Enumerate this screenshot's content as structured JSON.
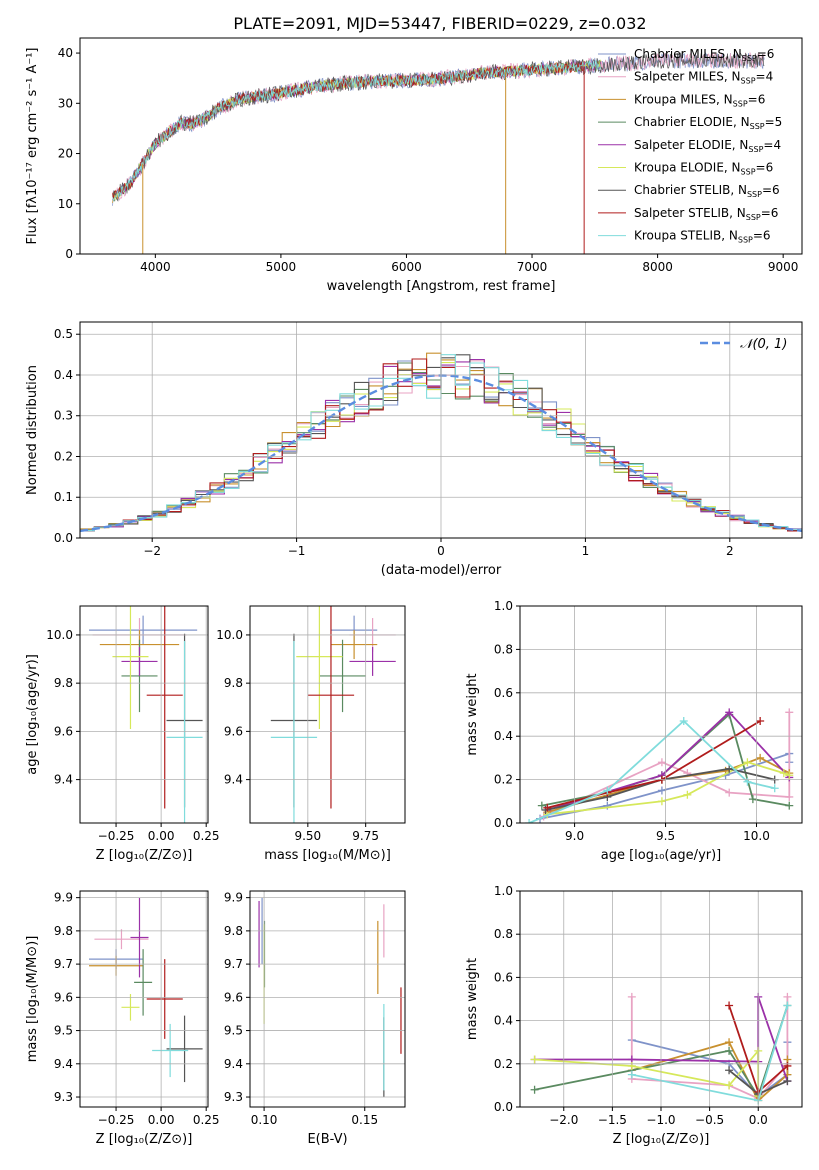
{
  "figure": {
    "title": "PLATE=2091, MJD=53447, FIBERID=0229, z=0.032"
  },
  "models": [
    {
      "label": "Chabrier MILES, N",
      "sub": "SSP",
      "suffix": "=6",
      "color": "#7f93c9"
    },
    {
      "label": "Salpeter MILES, N",
      "sub": "SSP",
      "suffix": "=4",
      "color": "#e8a3c3"
    },
    {
      "label": "Kroupa MILES, N",
      "sub": "SSP",
      "suffix": "=6",
      "color": "#c8902e"
    },
    {
      "label": "Chabrier ELODIE, N",
      "sub": "SSP",
      "suffix": "=5",
      "color": "#5a8a60"
    },
    {
      "label": "Salpeter ELODIE, N",
      "sub": "SSP",
      "suffix": "=4",
      "color": "#9b31a8"
    },
    {
      "label": "Kroupa ELODIE, N",
      "sub": "SSP",
      "suffix": "=6",
      "color": "#d6e85a"
    },
    {
      "label": "Chabrier STELIB, N",
      "sub": "SSP",
      "suffix": "=6",
      "color": "#555555"
    },
    {
      "label": "Salpeter STELIB, N",
      "sub": "SSP",
      "suffix": "=6",
      "color": "#b01c1c"
    },
    {
      "label": "Kroupa STELIB, N",
      "sub": "SSP",
      "suffix": "=6",
      "color": "#80dcdc"
    }
  ],
  "chart_data": [
    {
      "id": "spectrum",
      "type": "line",
      "xlabel": "wavelength [Angstrom, rest frame]",
      "ylabel": "Flux [fλ10⁻¹⁷ erg cm⁻² s⁻¹ A⁻¹]",
      "xlim": [
        3400,
        9150
      ],
      "ylim": [
        0,
        43
      ],
      "xticks": [
        4000,
        5000,
        6000,
        7000,
        8000,
        9000
      ],
      "yticks": [
        0,
        10,
        20,
        30,
        40
      ],
      "continuum": [
        [
          3650,
          11
        ],
        [
          3800,
          14
        ],
        [
          3900,
          18
        ],
        [
          4000,
          22
        ],
        [
          4100,
          24
        ],
        [
          4200,
          26
        ],
        [
          4300,
          26
        ],
        [
          4400,
          27
        ],
        [
          4500,
          29
        ],
        [
          4700,
          31
        ],
        [
          5000,
          32
        ],
        [
          5200,
          33
        ],
        [
          5500,
          34
        ],
        [
          5800,
          34.5
        ],
        [
          6000,
          34.5
        ],
        [
          6300,
          35
        ],
        [
          6600,
          36
        ],
        [
          6900,
          36.5
        ],
        [
          7200,
          37
        ],
        [
          7500,
          37.5
        ],
        [
          7800,
          38
        ],
        [
          8100,
          38.5
        ],
        [
          8400,
          38.5
        ],
        [
          8800,
          38.5
        ]
      ],
      "series": [
        {
          "model": 0,
          "x_end": 8850
        },
        {
          "model": 1,
          "x_end": 8850
        },
        {
          "model": 2,
          "x_end": 7550
        },
        {
          "model": 3,
          "x_end": 7550
        },
        {
          "model": 4,
          "x_end": 7550
        },
        {
          "model": 5,
          "x_end": 7550
        },
        {
          "model": 6,
          "x_end": 8850
        },
        {
          "model": 7,
          "x_end": 7420
        },
        {
          "model": 8,
          "x_end": 7550
        }
      ],
      "legend_loc": "right"
    },
    {
      "id": "residuals",
      "type": "histogram",
      "xlabel": "(data-model)/error",
      "ylabel": "Normed distribution",
      "xlim": [
        -2.5,
        2.5
      ],
      "ylim": [
        0,
        0.53
      ],
      "xticks": [
        -2,
        -1,
        0,
        1,
        2
      ],
      "yticks": [
        0.0,
        0.1,
        0.2,
        0.3,
        0.4,
        0.5
      ],
      "bin_width": 0.1,
      "gaussian_label": "𝒩(0, 1)",
      "gaussian_color": "#5b8de0"
    },
    {
      "id": "age_vs_Z",
      "type": "errorbar",
      "xlabel": "Z [log₁₀(Z/Z⊙)]",
      "ylabel": "age  [log₁₀(age/yr)]",
      "xlim": [
        -0.45,
        0.26
      ],
      "ylim": [
        9.22,
        10.12
      ],
      "xticks": [
        -0.25,
        0.0,
        0.25
      ],
      "xticklabels": [
        "−0.25",
        "0.00",
        "0.25"
      ],
      "yticks": [
        9.4,
        9.6,
        9.8,
        10.0
      ],
      "points": [
        {
          "model": 0,
          "x": -0.1,
          "xerr": 0.3,
          "y": 10.02,
          "yerr": 0.06
        },
        {
          "model": 1,
          "x": -0.12,
          "xerr": 0.26,
          "y": 10.0,
          "yerr": 0.07
        },
        {
          "model": 2,
          "x": -0.12,
          "xerr": 0.22,
          "y": 9.96,
          "yerr": 0.06
        },
        {
          "model": 3,
          "x": -0.12,
          "xerr": 0.1,
          "y": 9.83,
          "yerr": 0.15
        },
        {
          "model": 4,
          "x": -0.12,
          "xerr": 0.1,
          "y": 9.89,
          "yerr": 0.06
        },
        {
          "model": 5,
          "x": -0.17,
          "xerr": 0.1,
          "y": 9.91,
          "yerr": 0.3
        },
        {
          "model": 6,
          "x": 0.13,
          "xerr": 0.1,
          "y": 9.645,
          "yerr": 0.36
        },
        {
          "model": 7,
          "x": 0.02,
          "xerr": 0.1,
          "y": 9.75,
          "yerr": 0.47
        },
        {
          "model": 8,
          "x": 0.13,
          "xerr": 0.1,
          "y": 9.575,
          "yerr": 0.4
        }
      ]
    },
    {
      "id": "age_vs_mass",
      "type": "errorbar",
      "xlabel": "mass [log₁₀(M/M⊙)]",
      "ylabel": "",
      "xlim": [
        9.25,
        9.92
      ],
      "ylim": [
        9.22,
        10.12
      ],
      "xticks": [
        9.5,
        9.75
      ],
      "xticklabels": [
        "9.50",
        "9.75"
      ],
      "yticks": [
        9.4,
        9.6,
        9.8,
        10.0
      ],
      "points": [
        {
          "model": 0,
          "x": 9.7,
          "xerr": 0.1,
          "y": 10.02,
          "yerr": 0.06
        },
        {
          "model": 1,
          "x": 9.78,
          "xerr": 0.1,
          "y": 10.0,
          "yerr": 0.07
        },
        {
          "model": 2,
          "x": 9.7,
          "xerr": 0.1,
          "y": 9.96,
          "yerr": 0.06
        },
        {
          "model": 3,
          "x": 9.65,
          "xerr": 0.1,
          "y": 9.83,
          "yerr": 0.15
        },
        {
          "model": 4,
          "x": 9.78,
          "xerr": 0.1,
          "y": 9.89,
          "yerr": 0.06
        },
        {
          "model": 5,
          "x": 9.55,
          "xerr": 0.1,
          "y": 9.91,
          "yerr": 0.3
        },
        {
          "model": 6,
          "x": 9.44,
          "xerr": 0.1,
          "y": 9.645,
          "yerr": 0.36
        },
        {
          "model": 7,
          "x": 9.6,
          "xerr": 0.1,
          "y": 9.75,
          "yerr": 0.47
        },
        {
          "model": 8,
          "x": 9.44,
          "xerr": 0.1,
          "y": 9.575,
          "yerr": 0.4
        }
      ]
    },
    {
      "id": "weight_vs_age",
      "type": "line_marker",
      "xlabel": "age  [log₁₀(age/yr)]",
      "ylabel": "mass weight",
      "xlim": [
        8.7,
        10.25
      ],
      "ylim": [
        0,
        1.0
      ],
      "xticks": [
        9.0,
        9.5,
        10.0
      ],
      "xticklabels": [
        "9.0",
        "9.5",
        "10.0"
      ],
      "yticks": [
        0.0,
        0.2,
        0.4,
        0.6,
        0.8,
        1.0
      ],
      "series": [
        {
          "model": 0,
          "x": [
            8.81,
            9.18,
            9.48,
            9.83,
            10.18,
            10.18
          ],
          "y": [
            0.02,
            0.08,
            0.15,
            0.22,
            0.32,
            0.28
          ]
        },
        {
          "model": 1,
          "x": [
            8.83,
            9.48,
            9.62,
            9.85,
            10.18,
            10.18
          ],
          "y": [
            0.03,
            0.28,
            0.23,
            0.14,
            0.12,
            0.51
          ]
        },
        {
          "model": 2,
          "x": [
            8.85,
            9.48,
            9.83,
            10.02,
            10.18
          ],
          "y": [
            0.05,
            0.2,
            0.24,
            0.3,
            0.23
          ]
        },
        {
          "model": 3,
          "x": [
            8.82,
            9.18,
            9.48,
            9.85,
            9.98,
            10.18
          ],
          "y": [
            0.08,
            0.14,
            0.22,
            0.5,
            0.11,
            0.08
          ]
        },
        {
          "model": 4,
          "x": [
            8.85,
            9.48,
            9.85,
            10.18
          ],
          "y": [
            0.06,
            0.22,
            0.51,
            0.21
          ]
        },
        {
          "model": 5,
          "x": [
            8.85,
            9.48,
            9.62,
            9.95,
            10.15,
            10.18
          ],
          "y": [
            0.04,
            0.1,
            0.13,
            0.28,
            0.23,
            0.22
          ]
        },
        {
          "model": 6,
          "x": [
            8.84,
            9.18,
            9.48,
            9.85,
            10.1
          ],
          "y": [
            0.06,
            0.12,
            0.2,
            0.25,
            0.2
          ]
        },
        {
          "model": 7,
          "x": [
            8.85,
            9.18,
            9.48,
            10.02
          ],
          "y": [
            0.07,
            0.14,
            0.2,
            0.47
          ]
        },
        {
          "model": 8,
          "x": [
            8.75,
            9.18,
            9.6,
            9.95,
            10.1
          ],
          "y": [
            0.0,
            0.15,
            0.47,
            0.19,
            0.16
          ]
        }
      ]
    },
    {
      "id": "mass_vs_Z",
      "type": "errorbar",
      "xlabel": "Z [log₁₀(Z/Z⊙)]",
      "ylabel": "mass [log₁₀(M/M⊙)]",
      "xlim": [
        -0.45,
        0.26
      ],
      "ylim": [
        9.27,
        9.92
      ],
      "xticks": [
        -0.25,
        0.0,
        0.25
      ],
      "xticklabels": [
        "−0.25",
        "0.00",
        "0.25"
      ],
      "yticks": [
        9.3,
        9.4,
        9.5,
        9.6,
        9.7,
        9.8,
        9.9
      ],
      "points": [
        {
          "model": 0,
          "x": -0.25,
          "xerr": 0.15,
          "y": 9.715,
          "yerr": 0.03
        },
        {
          "model": 1,
          "x": -0.22,
          "xerr": 0.15,
          "y": 9.775,
          "yerr": 0.03
        },
        {
          "model": 2,
          "x": -0.25,
          "xerr": 0.15,
          "y": 9.695,
          "yerr": 0.03
        },
        {
          "model": 3,
          "x": -0.1,
          "xerr": 0.05,
          "y": 9.645,
          "yerr": 0.1
        },
        {
          "model": 4,
          "x": -0.12,
          "xerr": 0.05,
          "y": 9.78,
          "yerr": 0.12
        },
        {
          "model": 5,
          "x": -0.17,
          "xerr": 0.05,
          "y": 9.57,
          "yerr": 0.04
        },
        {
          "model": 6,
          "x": 0.13,
          "xerr": 0.1,
          "y": 9.445,
          "yerr": 0.1
        },
        {
          "model": 7,
          "x": 0.02,
          "xerr": 0.1,
          "y": 9.595,
          "yerr": 0.12
        },
        {
          "model": 8,
          "x": 0.05,
          "xerr": 0.1,
          "y": 9.44,
          "yerr": 0.08
        }
      ]
    },
    {
      "id": "mass_vs_ebv",
      "type": "errorbar",
      "xlabel": "E(B-V)",
      "ylabel": "",
      "xlim": [
        0.093,
        0.17
      ],
      "ylim": [
        9.27,
        9.92
      ],
      "xticks": [
        0.1,
        0.15
      ],
      "xticklabels": [
        "0.10",
        "0.15"
      ],
      "yticks": [
        9.3,
        9.4,
        9.5,
        9.6,
        9.7,
        9.8,
        9.9
      ],
      "points": [
        {
          "model": 0,
          "x": 0.099,
          "y": 9.8,
          "yerr": 0.1
        },
        {
          "model": 1,
          "x": 0.1595,
          "y": 9.8,
          "yerr": 0.08
        },
        {
          "model": 2,
          "x": 0.1565,
          "y": 9.72,
          "yerr": 0.11
        },
        {
          "model": 3,
          "x": 0.1002,
          "y": 9.73,
          "yerr": 0.1
        },
        {
          "model": 4,
          "x": 0.0975,
          "y": 9.79,
          "yerr": 0.1
        },
        {
          "model": 5,
          "x": 0.1,
          "y": 9.67,
          "yerr": 0.15
        },
        {
          "model": 6,
          "x": 0.1595,
          "y": 9.42,
          "yerr": 0.12
        },
        {
          "model": 7,
          "x": 0.168,
          "y": 9.53,
          "yerr": 0.1
        },
        {
          "model": 8,
          "x": 0.1595,
          "y": 9.45,
          "yerr": 0.13
        }
      ]
    },
    {
      "id": "weight_vs_Z",
      "type": "line_marker",
      "xlabel": "Z [log₁₀(Z/Z⊙)]",
      "ylabel": "mass weight",
      "xlim": [
        -2.45,
        0.45
      ],
      "ylim": [
        0,
        1.0
      ],
      "xticks": [
        -2.0,
        -1.5,
        -1.0,
        -0.5,
        0.0
      ],
      "xticklabels": [
        "−2.0",
        "−1.5",
        "−1.0",
        "−0.5",
        "0.0"
      ],
      "yticks": [
        0.0,
        0.2,
        0.4,
        0.6,
        0.8,
        1.0
      ],
      "series": [
        {
          "model": 0,
          "x": [
            -1.3,
            -0.3,
            0.0,
            0.3,
            0.3
          ],
          "y": [
            0.31,
            0.2,
            0.05,
            0.15,
            0.3
          ]
        },
        {
          "model": 1,
          "x": [
            -1.3,
            -1.3,
            -0.3,
            0.0,
            0.3,
            0.3
          ],
          "y": [
            0.51,
            0.13,
            0.1,
            0.04,
            0.2,
            0.51
          ]
        },
        {
          "model": 2,
          "x": [
            -1.3,
            -0.3,
            0.0,
            0.3,
            0.3
          ],
          "y": [
            0.17,
            0.3,
            0.03,
            0.15,
            0.22
          ]
        },
        {
          "model": 3,
          "x": [
            -2.3,
            -0.3,
            0.0,
            0.3
          ],
          "y": [
            0.08,
            0.26,
            0.05,
            0.47
          ]
        },
        {
          "model": 4,
          "x": [
            -2.3,
            -1.3,
            0.0,
            0.0,
            0.3
          ],
          "y": [
            0.22,
            0.22,
            0.21,
            0.51,
            0.12
          ]
        },
        {
          "model": 5,
          "x": [
            -2.3,
            -1.3,
            -0.3,
            0.0,
            0.0
          ],
          "y": [
            0.22,
            0.19,
            0.1,
            0.26,
            0.05
          ]
        },
        {
          "model": 6,
          "x": [
            -0.3,
            0.0,
            0.3
          ],
          "y": [
            0.17,
            0.06,
            0.12
          ]
        },
        {
          "model": 7,
          "x": [
            -0.3,
            0.0,
            0.3
          ],
          "y": [
            0.47,
            0.07,
            0.19
          ]
        },
        {
          "model": 8,
          "x": [
            -1.3,
            0.0,
            0.3
          ],
          "y": [
            0.15,
            0.03,
            0.47
          ]
        }
      ]
    }
  ]
}
